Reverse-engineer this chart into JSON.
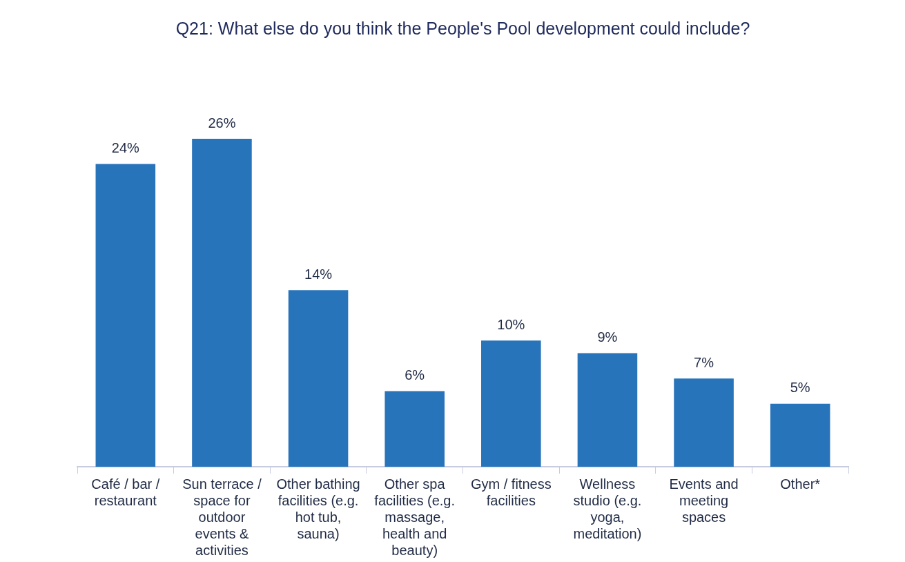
{
  "chart_data": {
    "type": "bar",
    "title": "Q21: What else do you think the People's Pool development could include?",
    "categories": [
      "Café / bar / restaurant",
      "Sun terrace / space for outdoor events & activities",
      "Other bathing facilities (e.g. hot tub, sauna)",
      "Other spa facilities (e.g. massage, health and beauty)",
      "Gym / fitness facilities",
      "Wellness studio (e.g. yoga, meditation)",
      "Events and meeting spaces",
      "Other*"
    ],
    "values": [
      24,
      26,
      14,
      6,
      10,
      9,
      7,
      5
    ],
    "value_labels": [
      "24%",
      "26%",
      "14%",
      "6%",
      "10%",
      "9%",
      "7%",
      "5%"
    ],
    "color": "#2874bb",
    "grid": false,
    "legend": false,
    "tick_labels": "x"
  }
}
